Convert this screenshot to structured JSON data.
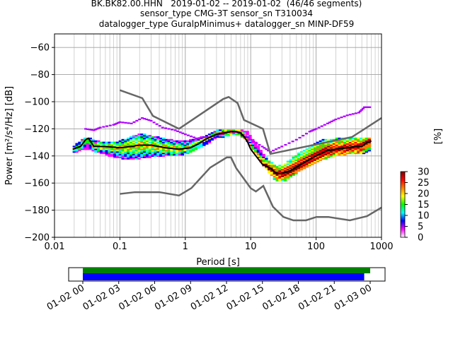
{
  "title_lines": [
    "BK.BK82.00.HHN   2019-01-02 -- 2019-01-02  (46/46 segments)",
    "sensor_type CMG-3T sensor_sn T310034",
    "datalogger_type GuralpMinimus+ datalogger_sn MINP-DF59"
  ],
  "colorbar": {
    "label": "[%]",
    "ticks": [
      0,
      5,
      10,
      15,
      20,
      25,
      30
    ],
    "range": [
      0,
      30
    ],
    "colors": [
      "#ffffff",
      "#ff00ff",
      "#0000ff",
      "#00ffff",
      "#00ff00",
      "#ffff00",
      "#ff7f00",
      "#ff0000",
      "#7f0000"
    ]
  },
  "chart_data": [
    {
      "type": "heatmap",
      "title": "BK.BK82.00.HHN   2019-01-02 -- 2019-01-02  (46/46 segments)",
      "xlabel": "Period [s]",
      "ylabel": "Power [m²/s⁴/Hz] [dB]",
      "x_scale": "log",
      "xlim": [
        0.01,
        1000
      ],
      "ylim": [
        -200,
        -50
      ],
      "x_ticks": [
        0.01,
        0.1,
        1,
        10,
        100,
        1000
      ],
      "x_tick_labels": [
        "0.01",
        "0.1",
        "1",
        "10",
        "100",
        "1000"
      ],
      "y_ticks": [
        -200,
        -180,
        -160,
        -140,
        -120,
        -100,
        -80,
        -60
      ],
      "y_tick_labels": [
        "−200",
        "−180",
        "−160",
        "−140",
        "−120",
        "−100",
        "−80",
        "−60"
      ],
      "grid": true,
      "mode_line": {
        "color": "#000000",
        "x": [
          0.019,
          0.025,
          0.03,
          0.033,
          0.04,
          0.06,
          0.1,
          0.15,
          0.2,
          0.3,
          0.5,
          0.8,
          1.2,
          1.6,
          2,
          3,
          4,
          5,
          6,
          7,
          8,
          9,
          10,
          12,
          15,
          20,
          25,
          30,
          40,
          60,
          100,
          150,
          200,
          300,
          400,
          500,
          600,
          700
        ],
        "y": [
          -135,
          -133,
          -128,
          -127,
          -133,
          -133,
          -134,
          -133,
          -132,
          -132,
          -134,
          -135,
          -134,
          -131,
          -128,
          -124,
          -123,
          -122,
          -122,
          -123,
          -126,
          -130,
          -135,
          -140,
          -146,
          -149,
          -153,
          -153,
          -151,
          -146,
          -140,
          -136,
          -135,
          -134,
          -133,
          -133,
          -130,
          -129
        ]
      },
      "noise_models": {
        "color": "#666666",
        "nhnm": {
          "x": [
            0.1,
            0.22,
            0.32,
            0.8,
            3.8,
            4.6,
            6.3,
            7.9,
            15.4,
            20,
            354.8,
            1000
          ],
          "y": [
            -91.5,
            -97.4,
            -110.5,
            -120,
            -98,
            -96.5,
            -101,
            -113.5,
            -120,
            -138.5,
            -126,
            -112
          ]
        },
        "nlnm": {
          "x": [
            0.1,
            0.17,
            0.4,
            0.8,
            1.24,
            2.4,
            4.3,
            5,
            6,
            10,
            12,
            15.6,
            21.9,
            31.6,
            45,
            70,
            101,
            154,
            328,
            600,
            1000
          ],
          "y": [
            -168,
            -166.7,
            -166.7,
            -169.2,
            -163.7,
            -148.6,
            -141.1,
            -141.1,
            -149,
            -163.8,
            -166.2,
            -162.1,
            -177.5,
            -185,
            -187.5,
            -187.5,
            -185,
            -185,
            -187.5,
            -184.4,
            -178
          ]
        }
      },
      "psd_hits": {
        "x": [
          0.02,
          0.03,
          0.05,
          0.08,
          0.13,
          0.2,
          0.3,
          0.5,
          0.8,
          1.2,
          2,
          3,
          5,
          7,
          9,
          12,
          18,
          25,
          35,
          50,
          80,
          120,
          200,
          300,
          450,
          650
        ],
        "y_low": [
          -137,
          -134,
          -137,
          -140,
          -142,
          -141,
          -140,
          -139,
          -139,
          -137,
          -131,
          -126,
          -124,
          -124,
          -129,
          -138,
          -150,
          -158,
          -157,
          -152,
          -146,
          -142,
          -139,
          -138,
          -138,
          -136
        ],
        "y_high": [
          -133,
          -127,
          -130,
          -131,
          -128,
          -124,
          -126,
          -128,
          -130,
          -129,
          -126,
          -122,
          -121,
          -121,
          -123,
          -131,
          -143,
          -149,
          -146,
          -140,
          -134,
          -129,
          -128,
          -127,
          -127,
          -127
        ]
      },
      "upper_outliers": {
        "color": "#ad00ff",
        "x": [
          0.03,
          0.04,
          0.05,
          0.08,
          0.1,
          0.15,
          0.22,
          0.3,
          0.45,
          0.7,
          1,
          1.5,
          2.2,
          3.5,
          5,
          7,
          10,
          15,
          20,
          30,
          50,
          80,
          100,
          150,
          200,
          300,
          450,
          550,
          700
        ],
        "y": [
          -120,
          -121,
          -119,
          -117,
          -115,
          -116,
          -112,
          -114,
          -119,
          -121,
          -124,
          -127,
          -126,
          -124,
          -122,
          -123,
          -128,
          -133,
          -137,
          -133,
          -128,
          -122,
          -120,
          -116,
          -113,
          -110,
          -108,
          -104,
          -104
        ]
      }
    },
    {
      "type": "timeline",
      "x_tick_labels": [
        "01-02 00",
        "01-02 03",
        "01-02 06",
        "01-02 09",
        "01-02 12",
        "01-02 15",
        "01-02 18",
        "01-02 21",
        "01-03 00"
      ],
      "bars": [
        {
          "color": "#008000",
          "start": "01-02 00",
          "end": "01-03 00"
        },
        {
          "color": "#0000ff",
          "start": "01-02 00",
          "end": "01-02 23:30"
        }
      ]
    }
  ]
}
